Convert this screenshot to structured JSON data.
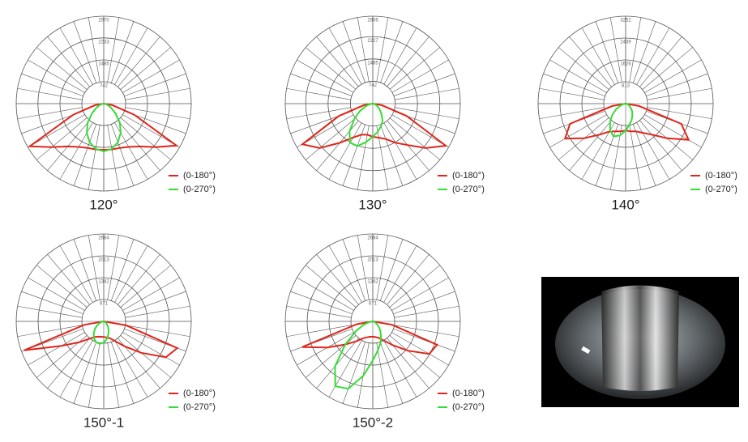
{
  "chart_data": [
    {
      "type": "polar",
      "title": "120°",
      "x": [
        -90,
        -80,
        -70,
        -60,
        -50,
        -40,
        -30,
        -20,
        -10,
        0,
        10,
        20,
        30,
        40,
        50,
        60,
        70,
        80,
        90
      ],
      "rlim": [
        0,
        2970
      ],
      "rticks": [
        742,
        1485,
        2233,
        2970
      ],
      "series": [
        {
          "name": "(0-180°)",
          "color": "#e0261b",
          "values": [
            0,
            300,
            1100,
            2900,
            2300,
            1900,
            1700,
            1600,
            1580,
            1570,
            1580,
            1600,
            1700,
            1900,
            2300,
            2850,
            1100,
            300,
            0
          ]
        },
        {
          "name": "(0-270°)",
          "color": "#33dd33",
          "values": [
            0,
            60,
            150,
            300,
            520,
            850,
            1150,
            1400,
            1560,
            1620,
            1560,
            1400,
            1150,
            850,
            520,
            300,
            150,
            60,
            0
          ]
        }
      ]
    },
    {
      "type": "polar",
      "title": "130°",
      "x": [
        -90,
        -80,
        -70,
        -60,
        -50,
        -40,
        -30,
        -20,
        -10,
        0,
        10,
        20,
        30,
        40,
        50,
        60,
        70,
        80,
        90
      ],
      "rlim": [
        0,
        2906
      ],
      "rticks": [
        742,
        1485,
        2227,
        2906
      ],
      "series": [
        {
          "name": "(0-180°)",
          "color": "#e0261b",
          "values": [
            0,
            300,
            1200,
            2700,
            2300,
            1700,
            1300,
            1100,
            1050,
            1100,
            1150,
            1250,
            1500,
            1800,
            2300,
            2800,
            1200,
            300,
            0
          ]
        },
        {
          "name": "(0-270°)",
          "color": "#33dd33",
          "values": [
            0,
            100,
            250,
            500,
            800,
            1200,
            1500,
            1500,
            1300,
            1100,
            950,
            800,
            650,
            450,
            300,
            180,
            100,
            40,
            0
          ]
        }
      ]
    },
    {
      "type": "polar",
      "title": "140°",
      "x": [
        -90,
        -80,
        -70,
        -60,
        -50,
        -40,
        -30,
        -20,
        -10,
        0,
        10,
        20,
        30,
        40,
        50,
        60,
        70,
        80,
        90
      ],
      "rlim": [
        0,
        3252
      ],
      "rticks": [
        813,
        1626,
        2439,
        3252
      ],
      "series": [
        {
          "name": "(0-180°)",
          "color": "#e0261b",
          "values": [
            0,
            500,
            2200,
            2600,
            2000,
            1500,
            1200,
            1100,
            1050,
            1000,
            1050,
            1100,
            1250,
            1500,
            2000,
            2700,
            2200,
            500,
            0
          ]
        },
        {
          "name": "(0-270°)",
          "color": "#33dd33",
          "values": [
            0,
            80,
            200,
            400,
            650,
            900,
            1150,
            1300,
            1200,
            1000,
            800,
            650,
            500,
            380,
            260,
            160,
            90,
            40,
            0
          ]
        }
      ]
    },
    {
      "type": "polar",
      "title": "150°-1",
      "x": [
        -90,
        -80,
        -70,
        -60,
        -50,
        -40,
        -30,
        -20,
        -10,
        0,
        10,
        20,
        30,
        40,
        50,
        60,
        70,
        80,
        90
      ],
      "rlim": [
        0,
        2684
      ],
      "rticks": [
        671,
        1342,
        2013,
        2684
      ],
      "series": [
        {
          "name": "(0-180°)",
          "color": "#e0261b",
          "values": [
            0,
            600,
            2600,
            1500,
            1000,
            700,
            550,
            500,
            480,
            480,
            500,
            550,
            700,
            1000,
            1500,
            2200,
            2400,
            700,
            0
          ]
        },
        {
          "name": "(0-270°)",
          "color": "#33dd33",
          "values": [
            0,
            50,
            120,
            220,
            350,
            480,
            600,
            680,
            700,
            650,
            550,
            420,
            300,
            200,
            120,
            70,
            30,
            10,
            0
          ]
        }
      ]
    },
    {
      "type": "polar",
      "title": "150°-2",
      "x": [
        -90,
        -80,
        -70,
        -60,
        -50,
        -40,
        -30,
        -20,
        -10,
        0,
        10,
        20,
        30,
        40,
        50,
        60,
        70,
        80,
        90
      ],
      "rlim": [
        0,
        2684
      ],
      "rticks": [
        671,
        1342,
        2013,
        2684
      ],
      "series": [
        {
          "name": "(0-180°)",
          "color": "#e0261b",
          "values": [
            0,
            500,
            2300,
            1600,
            1100,
            800,
            600,
            520,
            480,
            470,
            490,
            540,
            680,
            950,
            1400,
            2000,
            2100,
            600,
            0
          ]
        },
        {
          "name": "(0-270°)",
          "color": "#33dd33",
          "values": [
            0,
            100,
            300,
            600,
            1100,
            1800,
            2300,
            2200,
            1700,
            1200,
            900,
            700,
            500,
            350,
            220,
            130,
            60,
            20,
            0
          ]
        }
      ]
    }
  ]
}
